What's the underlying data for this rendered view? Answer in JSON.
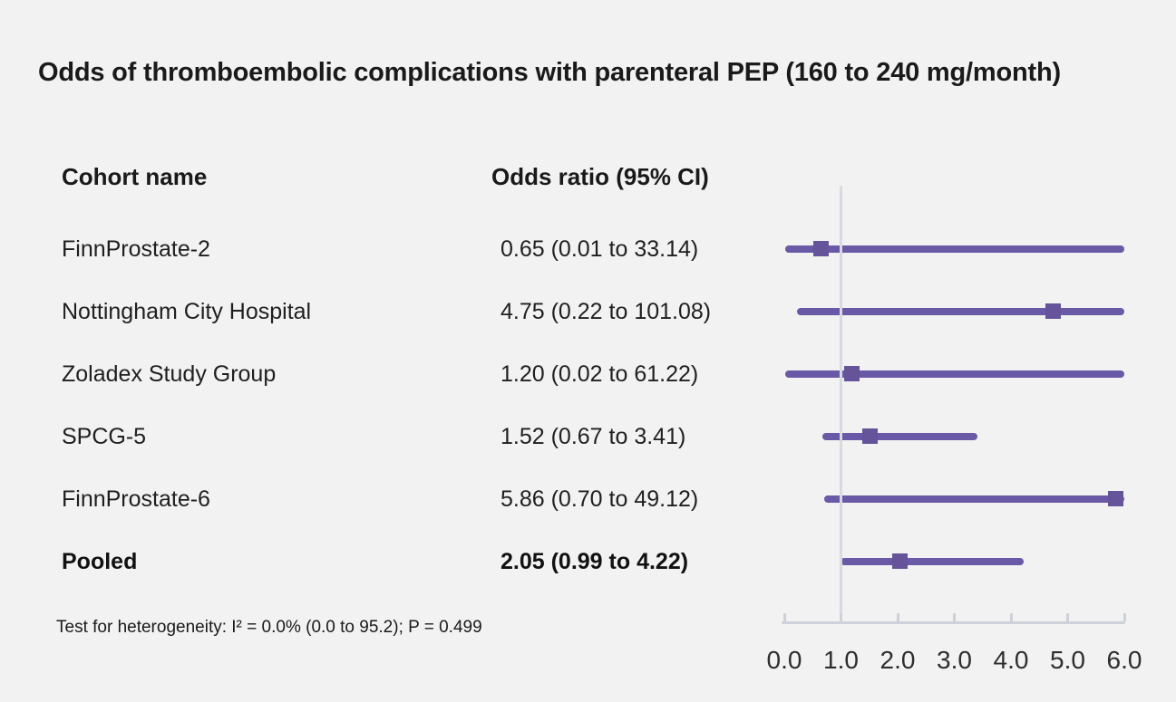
{
  "title": "Odds of thromboembolic complications with parenteral PEP (160 to 240 mg/month)",
  "columns": {
    "cohort": "Cohort name",
    "odds_ratio": "Odds ratio (95% CI)"
  },
  "footnote": "Test for heterogeneity: I² = 0.0% (0.0 to 95.2); P = 0.499",
  "chart_data": {
    "type": "scatter",
    "subtype": "forest-plot",
    "title": "Odds of thromboembolic complications with parenteral PEP (160 to 240 mg/month)",
    "studies": [
      {
        "name": "FinnProstate-2",
        "or": 0.65,
        "ci_low": 0.01,
        "ci_high": 33.14,
        "display": "0.65 (0.01 to 33.14)",
        "bold": false
      },
      {
        "name": "Nottingham City Hospital",
        "or": 4.75,
        "ci_low": 0.22,
        "ci_high": 101.08,
        "display": "4.75 (0.22 to 101.08)",
        "bold": false
      },
      {
        "name": "Zoladex Study Group",
        "or": 1.2,
        "ci_low": 0.02,
        "ci_high": 61.22,
        "display": "1.20 (0.02 to 61.22)",
        "bold": false
      },
      {
        "name": "SPCG-5",
        "or": 1.52,
        "ci_low": 0.67,
        "ci_high": 3.41,
        "display": "1.52 (0.67 to 3.41)",
        "bold": false
      },
      {
        "name": "FinnProstate-6",
        "or": 5.86,
        "ci_low": 0.7,
        "ci_high": 49.12,
        "display": "5.86 (0.70 to 49.12)",
        "bold": false
      },
      {
        "name": "Pooled",
        "or": 2.05,
        "ci_low": 0.99,
        "ci_high": 4.22,
        "display": "2.05 (0.99 to 4.22)",
        "bold": true
      }
    ],
    "x_axis": {
      "min": 0,
      "max": 6,
      "tick_labels": [
        "0.0",
        "1.0",
        "2.0",
        "3.0",
        "4.0",
        "5.0",
        "6.0"
      ],
      "reference_line_x": 1.0,
      "grid": false
    },
    "heterogeneity_note": "Test for heterogeneity: I² = 0.0% (0.0 to 95.2); P = 0.499",
    "colors": {
      "series": "#6a59a6",
      "marker": "#655499",
      "axis": "#cdd1d9",
      "reference_line": "#d7dae1",
      "background": "#f2f2f2",
      "text": "#1a1a1a"
    }
  }
}
